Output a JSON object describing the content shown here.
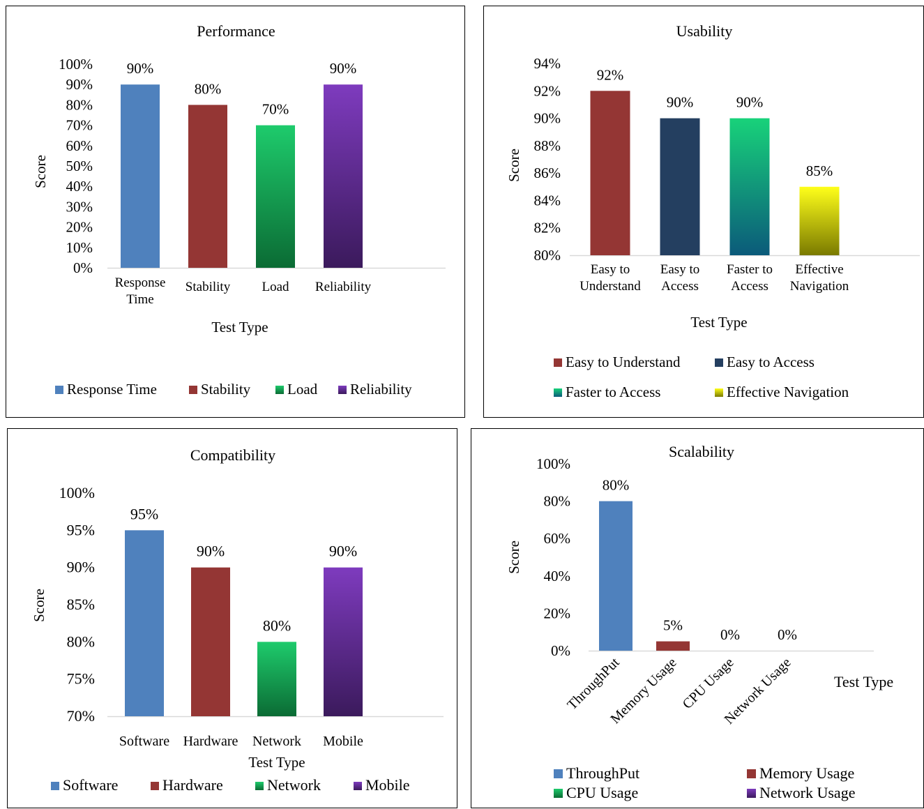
{
  "chart_data": [
    {
      "type": "bar",
      "title": "Performance",
      "xlabel": "Test Type",
      "ylabel": "Score",
      "categories": [
        "Response Time",
        "Stability",
        "Load",
        "Reliability"
      ],
      "values": [
        90,
        80,
        70,
        90
      ],
      "data_labels": [
        "90%",
        "80%",
        "70%",
        "90%"
      ],
      "ylim": [
        0,
        100
      ],
      "yticks": [
        "0%",
        "10%",
        "20%",
        "30%",
        "40%",
        "50%",
        "60%",
        "70%",
        "80%",
        "90%",
        "100%"
      ],
      "legend": [
        "Response Time",
        "Stability",
        "Load",
        "Reliability"
      ],
      "legend_position": "bottom",
      "colors": [
        "#4f81bd",
        "#943634",
        "gradient:#1ecb6c-#0b6b34",
        "gradient:#7e3bbe-#3b1a5c"
      ]
    },
    {
      "type": "bar",
      "title": "Usability",
      "xlabel": "Test Type",
      "ylabel": "Score",
      "categories": [
        "Easy to Understand",
        "Easy to Access",
        "Faster to Access",
        "Effective Navigation"
      ],
      "values": [
        92,
        90,
        90,
        85
      ],
      "data_labels": [
        "92%",
        "90%",
        "90%",
        "85%"
      ],
      "ylim": [
        80,
        94
      ],
      "yticks": [
        "80%",
        "82%",
        "84%",
        "86%",
        "88%",
        "90%",
        "92%",
        "94%"
      ],
      "legend": [
        "Easy to Understand",
        "Easy to Access",
        "Faster to Access",
        "Effective Navigation"
      ],
      "legend_position": "bottom",
      "colors": [
        "#943634",
        "#243f60",
        "gradient:#18d27a-#0b5a7a",
        "gradient:#ffff1a-#7a7a00"
      ]
    },
    {
      "type": "bar",
      "title": "Compatibility",
      "xlabel": "Test Type",
      "ylabel": "Score",
      "categories": [
        "Software",
        "Hardware",
        "Network",
        "Mobile"
      ],
      "values": [
        95,
        90,
        80,
        90
      ],
      "data_labels": [
        "95%",
        "90%",
        "80%",
        "90%"
      ],
      "ylim": [
        70,
        100
      ],
      "yticks": [
        "70%",
        "75%",
        "80%",
        "85%",
        "90%",
        "95%",
        "100%"
      ],
      "legend": [
        "Software",
        "Hardware",
        "Network",
        "Mobile"
      ],
      "legend_position": "bottom",
      "colors": [
        "#4f81bd",
        "#943634",
        "gradient:#1ecb6c-#0b6b34",
        "gradient:#7e3bbe-#3b1a5c"
      ]
    },
    {
      "type": "bar",
      "title": "Scalability",
      "xlabel": "Test Type",
      "ylabel": "Score",
      "categories": [
        "ThroughPut",
        "Memory Usage",
        "CPU Usage",
        "Network Usage"
      ],
      "values": [
        80,
        5,
        0,
        0
      ],
      "data_labels": [
        "80%",
        "5%",
        "0%",
        "0%"
      ],
      "ylim": [
        0,
        100
      ],
      "yticks": [
        "0%",
        "20%",
        "40%",
        "60%",
        "80%",
        "100%"
      ],
      "legend": [
        "ThroughPut",
        "Memory Usage",
        "CPU Usage",
        "Network Usage"
      ],
      "legend_position": "bottom",
      "colors": [
        "#4f81bd",
        "#943634",
        "gradient:#1ecb6c-#0b6b34",
        "gradient:#7e3bbe-#3b1a5c"
      ]
    }
  ]
}
